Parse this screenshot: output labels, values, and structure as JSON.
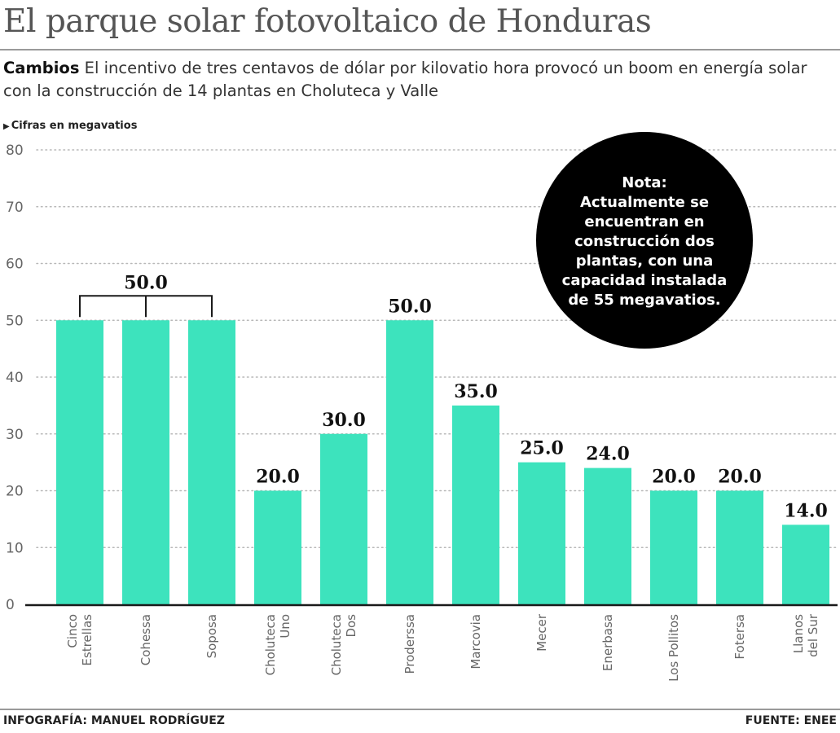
{
  "header": {
    "title": "El parque solar fotovoltaico de Honduras",
    "subtitle_lead": "Cambios",
    "subtitle_text": "El incentivo de tres centavos de dólar por kilovatio hora provocó un boom en energía solar con la construcción de 14 plantas en Choluteca y Valle",
    "units": "Cifras en megavatios",
    "units_icon": "triangle-right-icon"
  },
  "note": {
    "lines": [
      "Nota:",
      "Actualmente se",
      "encuentran en",
      "construcción dos",
      "plantas, con una",
      "capacidad instalada",
      "de 55 megavatios."
    ]
  },
  "footer": {
    "credit": "INFOGRAFÍA: MANUEL RODRÍGUEZ",
    "source": "FUENTE: ENEE"
  },
  "chart_data": {
    "type": "bar",
    "categories": [
      [
        "Cinco",
        "Estrellas"
      ],
      [
        "Cohessa"
      ],
      [
        "Soposa"
      ],
      [
        "Choluteca",
        "Uno"
      ],
      [
        "Choluteca",
        "Dos"
      ],
      [
        "Proderssa"
      ],
      [
        "Marcovia"
      ],
      [
        "Mecer"
      ],
      [
        "Enerbasa"
      ],
      [
        "Los Pollitos"
      ],
      [
        "Fotersa"
      ],
      [
        "Llanos",
        "del Sur"
      ]
    ],
    "values": [
      50,
      50,
      50,
      20,
      30,
      50,
      35,
      25,
      24,
      20,
      20,
      14
    ],
    "value_labels": [
      "",
      "",
      "",
      "20.0",
      "30.0",
      "50.0",
      "35.0",
      "25.0",
      "24.0",
      "20.0",
      "20.0",
      "14.0"
    ],
    "group_label": {
      "text": "50.0",
      "from": 0,
      "to": 2
    },
    "ylim": [
      0,
      80
    ],
    "yticks": [
      0,
      10,
      20,
      30,
      40,
      50,
      60,
      70,
      80
    ],
    "grid": true,
    "bar_color": "#3de3bd",
    "note_color": "#000000"
  }
}
